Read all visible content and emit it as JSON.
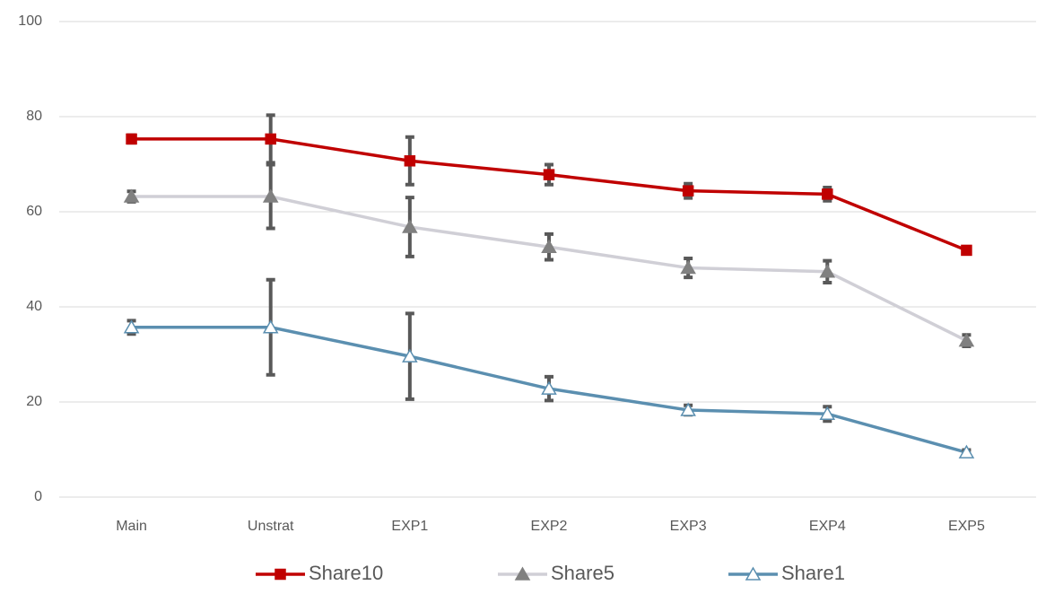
{
  "chart_data": {
    "type": "line",
    "categories": [
      "Main",
      "Unstrat",
      "EXP1",
      "EXP2",
      "EXP3",
      "EXP4",
      "EXP5"
    ],
    "series": [
      {
        "name": "Share10",
        "color": "#c00000",
        "marker": "square",
        "marker_color": "#c00000",
        "values": [
          75.3,
          75.3,
          70.7,
          67.8,
          64.4,
          63.7,
          51.9
        ],
        "errors": [
          0.8,
          5,
          5,
          2.1,
          1.5,
          1.4,
          0.7
        ]
      },
      {
        "name": "Share5",
        "color": "#d0cfd6",
        "marker": "triangle",
        "marker_color": "#808080",
        "values": [
          63.2,
          63.2,
          56.8,
          52.6,
          48.2,
          47.4,
          32.9
        ],
        "errors": [
          1.1,
          6.7,
          6.2,
          2.7,
          2,
          2.3,
          1.2
        ]
      },
      {
        "name": "Share1",
        "color": "#5b8fb0",
        "marker": "open-triangle",
        "marker_color": "#ffffff",
        "values": [
          35.7,
          35.7,
          29.6,
          22.8,
          18.3,
          17.5,
          9.4
        ],
        "errors": [
          1.4,
          10,
          9,
          2.5,
          1,
          1.5,
          0.5
        ]
      }
    ],
    "error_color": "#595959",
    "ylim": [
      0,
      100
    ],
    "yticks": [
      0,
      20,
      40,
      60,
      80,
      100
    ],
    "grid": true,
    "legend": "bottom"
  }
}
